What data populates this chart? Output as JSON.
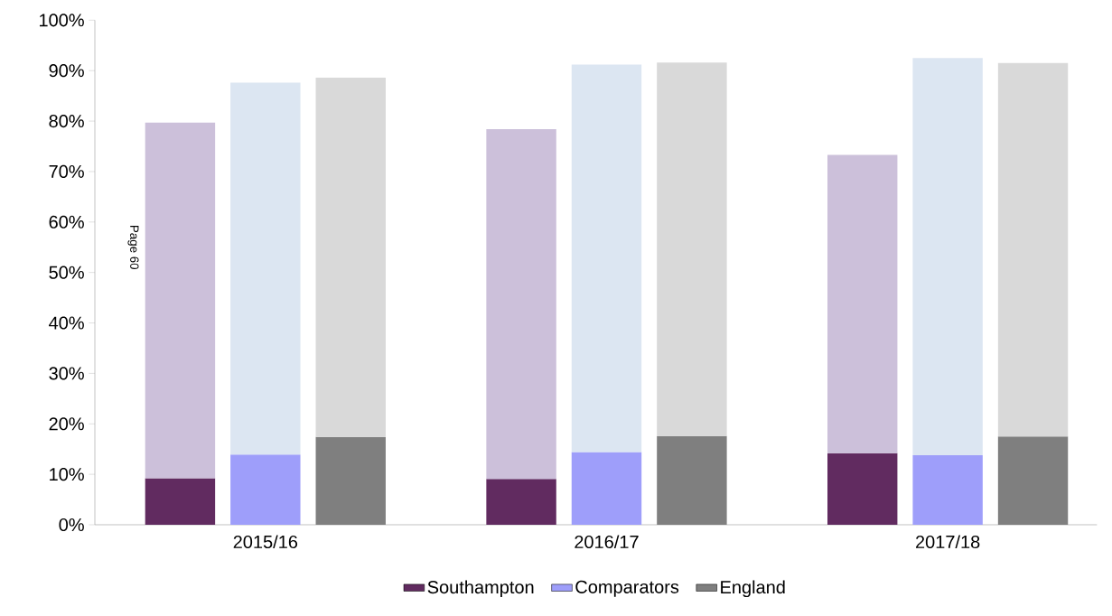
{
  "chart_data": {
    "type": "bar",
    "stacked": true,
    "categories": [
      null,
      "2015/16",
      null,
      null,
      null,
      "2016/17",
      null,
      null,
      null,
      "2017/18",
      null
    ],
    "series": [
      {
        "name": "Southampton",
        "color": "#612b60",
        "values": [
          9.2,
          null,
          null,
          null,
          9.1,
          null,
          null,
          null,
          14.2,
          null,
          null
        ]
      },
      {
        "name": "Comparators",
        "color": "#9e9efa",
        "values": [
          null,
          13.9,
          null,
          null,
          null,
          14.4,
          null,
          null,
          null,
          13.8,
          null
        ]
      },
      {
        "name": "England",
        "color": "#7f7f7f",
        "values": [
          null,
          null,
          17.4,
          null,
          null,
          null,
          17.6,
          null,
          null,
          null,
          17.5
        ]
      },
      {
        "color": "#ccc0da",
        "values": [
          70.5,
          null,
          null,
          null,
          69.3,
          null,
          null,
          null,
          59.1,
          null,
          null
        ]
      },
      {
        "color": "#dce6f2",
        "values": [
          null,
          73.7,
          null,
          null,
          null,
          76.8,
          null,
          null,
          null,
          78.7,
          null
        ]
      },
      {
        "color": "#d9d9d9",
        "values": [
          null,
          null,
          71.2,
          null,
          null,
          null,
          74.0,
          null,
          null,
          null,
          74.0
        ]
      }
    ],
    "ylim": [
      0,
      100
    ],
    "yticks": [
      {
        "value": 0,
        "label": "0%"
      },
      {
        "value": 10,
        "label": "10%"
      },
      {
        "value": 20,
        "label": "20%"
      },
      {
        "value": 30,
        "label": "30%"
      },
      {
        "value": 40,
        "label": "40%"
      },
      {
        "value": 50,
        "label": "50%"
      },
      {
        "value": 60,
        "label": "60%"
      },
      {
        "value": 70,
        "label": "70%"
      },
      {
        "value": 80,
        "label": "80%"
      },
      {
        "value": 90,
        "label": "90%"
      },
      {
        "value": 100,
        "label": "100%"
      }
    ],
    "legend": "bottom",
    "annotations": [
      "Page 60"
    ]
  }
}
